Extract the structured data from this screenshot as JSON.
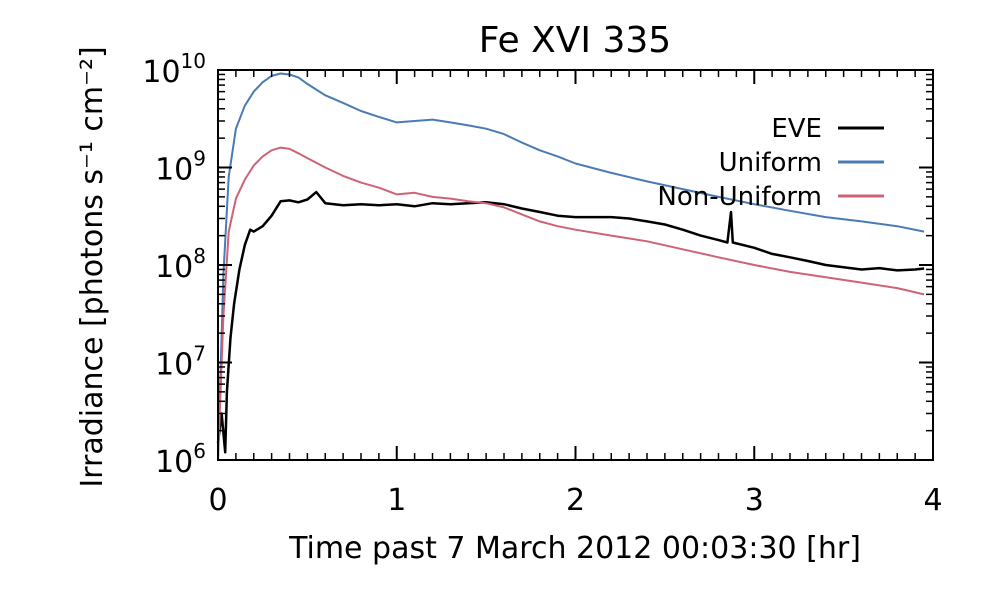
{
  "chart_data": {
    "type": "line",
    "title": "Fe XVI 335",
    "xlabel": "Time past 7 March 2012 00:03:30 [hr]",
    "ylabel": "Irradiance [photons s⁻¹ cm⁻²]",
    "xlim": [
      0,
      4
    ],
    "ylim": [
      1000000.0,
      10000000000.0
    ],
    "yscale": "log",
    "x_ticks": [
      0,
      1,
      2,
      3,
      4
    ],
    "x_tick_labels": [
      "0",
      "1",
      "2",
      "3",
      "4"
    ],
    "y_ticks": [
      1000000.0,
      10000000.0,
      100000000.0,
      1000000000.0,
      10000000000.0
    ],
    "y_tick_bases": [
      "10",
      "10",
      "10",
      "10",
      "10"
    ],
    "y_tick_exps": [
      "6",
      "7",
      "8",
      "9",
      "10"
    ],
    "grid": false,
    "legend_position": "top-right",
    "series": [
      {
        "name": "EVE",
        "color": "#000000",
        "points": [
          [
            0.0,
            1500000.0
          ],
          [
            0.02,
            3000000.0
          ],
          [
            0.04,
            1200000.0
          ],
          [
            0.05,
            5000000.0
          ],
          [
            0.07,
            18000000.0
          ],
          [
            0.09,
            40000000.0
          ],
          [
            0.12,
            90000000.0
          ],
          [
            0.15,
            160000000.0
          ],
          [
            0.18,
            230000000.0
          ],
          [
            0.2,
            220000000.0
          ],
          [
            0.25,
            250000000.0
          ],
          [
            0.3,
            320000000.0
          ],
          [
            0.35,
            450000000.0
          ],
          [
            0.4,
            460000000.0
          ],
          [
            0.45,
            440000000.0
          ],
          [
            0.5,
            470000000.0
          ],
          [
            0.55,
            560000000.0
          ],
          [
            0.6,
            430000000.0
          ],
          [
            0.7,
            410000000.0
          ],
          [
            0.8,
            420000000.0
          ],
          [
            0.9,
            410000000.0
          ],
          [
            1.0,
            420000000.0
          ],
          [
            1.1,
            400000000.0
          ],
          [
            1.2,
            430000000.0
          ],
          [
            1.3,
            420000000.0
          ],
          [
            1.4,
            430000000.0
          ],
          [
            1.5,
            440000000.0
          ],
          [
            1.6,
            420000000.0
          ],
          [
            1.7,
            380000000.0
          ],
          [
            1.8,
            350000000.0
          ],
          [
            1.9,
            320000000.0
          ],
          [
            2.0,
            310000000.0
          ],
          [
            2.1,
            310000000.0
          ],
          [
            2.2,
            310000000.0
          ],
          [
            2.3,
            300000000.0
          ],
          [
            2.4,
            280000000.0
          ],
          [
            2.5,
            260000000.0
          ],
          [
            2.6,
            230000000.0
          ],
          [
            2.7,
            200000000.0
          ],
          [
            2.8,
            180000000.0
          ],
          [
            2.85,
            170000000.0
          ],
          [
            2.87,
            350000000.0
          ],
          [
            2.88,
            170000000.0
          ],
          [
            3.0,
            150000000.0
          ],
          [
            3.1,
            130000000.0
          ],
          [
            3.2,
            120000000.0
          ],
          [
            3.3,
            110000000.0
          ],
          [
            3.4,
            100000000.0
          ],
          [
            3.5,
            95000000.0
          ],
          [
            3.6,
            90000000.0
          ],
          [
            3.7,
            93000000.0
          ],
          [
            3.8,
            88000000.0
          ],
          [
            3.9,
            90000000.0
          ],
          [
            3.95,
            92000000.0
          ]
        ]
      },
      {
        "name": "Uniform",
        "color": "#4a7bb5",
        "points": [
          [
            0.0,
            1000000.0
          ],
          [
            0.03,
            80000000.0
          ],
          [
            0.06,
            800000000.0
          ],
          [
            0.1,
            2500000000.0
          ],
          [
            0.15,
            4300000000.0
          ],
          [
            0.2,
            6000000000.0
          ],
          [
            0.25,
            7500000000.0
          ],
          [
            0.3,
            8700000000.0
          ],
          [
            0.35,
            9200000000.0
          ],
          [
            0.4,
            9000000000.0
          ],
          [
            0.45,
            8400000000.0
          ],
          [
            0.5,
            7200000000.0
          ],
          [
            0.55,
            6300000000.0
          ],
          [
            0.6,
            5500000000.0
          ],
          [
            0.7,
            4600000000.0
          ],
          [
            0.8,
            3800000000.0
          ],
          [
            0.9,
            3300000000.0
          ],
          [
            1.0,
            2900000000.0
          ],
          [
            1.1,
            3000000000.0
          ],
          [
            1.2,
            3100000000.0
          ],
          [
            1.3,
            2900000000.0
          ],
          [
            1.4,
            2700000000.0
          ],
          [
            1.5,
            2500000000.0
          ],
          [
            1.6,
            2200000000.0
          ],
          [
            1.7,
            1800000000.0
          ],
          [
            1.8,
            1500000000.0
          ],
          [
            1.9,
            1300000000.0
          ],
          [
            2.0,
            1100000000.0
          ],
          [
            2.2,
            880000000.0
          ],
          [
            2.4,
            720000000.0
          ],
          [
            2.6,
            600000000.0
          ],
          [
            2.8,
            500000000.0
          ],
          [
            3.0,
            420000000.0
          ],
          [
            3.2,
            360000000.0
          ],
          [
            3.4,
            310000000.0
          ],
          [
            3.6,
            280000000.0
          ],
          [
            3.8,
            250000000.0
          ],
          [
            3.95,
            220000000.0
          ]
        ]
      },
      {
        "name": "Non-Uniform",
        "color": "#cd6375",
        "points": [
          [
            0.0,
            1000000.0
          ],
          [
            0.03,
            30000000.0
          ],
          [
            0.06,
            220000000.0
          ],
          [
            0.1,
            480000000.0
          ],
          [
            0.15,
            750000000.0
          ],
          [
            0.2,
            1050000000.0
          ],
          [
            0.25,
            1300000000.0
          ],
          [
            0.3,
            1500000000.0
          ],
          [
            0.35,
            1600000000.0
          ],
          [
            0.4,
            1550000000.0
          ],
          [
            0.45,
            1400000000.0
          ],
          [
            0.5,
            1250000000.0
          ],
          [
            0.6,
            1000000000.0
          ],
          [
            0.7,
            820000000.0
          ],
          [
            0.8,
            700000000.0
          ],
          [
            0.9,
            620000000.0
          ],
          [
            1.0,
            530000000.0
          ],
          [
            1.1,
            550000000.0
          ],
          [
            1.2,
            500000000.0
          ],
          [
            1.3,
            480000000.0
          ],
          [
            1.4,
            450000000.0
          ],
          [
            1.5,
            430000000.0
          ],
          [
            1.6,
            390000000.0
          ],
          [
            1.7,
            330000000.0
          ],
          [
            1.8,
            280000000.0
          ],
          [
            1.9,
            250000000.0
          ],
          [
            2.0,
            230000000.0
          ],
          [
            2.2,
            200000000.0
          ],
          [
            2.4,
            175000000.0
          ],
          [
            2.6,
            145000000.0
          ],
          [
            2.8,
            120000000.0
          ],
          [
            3.0,
            100000000.0
          ],
          [
            3.2,
            85000000.0
          ],
          [
            3.4,
            75000000.0
          ],
          [
            3.6,
            66000000.0
          ],
          [
            3.8,
            58000000.0
          ],
          [
            3.95,
            50000000.0
          ]
        ]
      }
    ]
  }
}
